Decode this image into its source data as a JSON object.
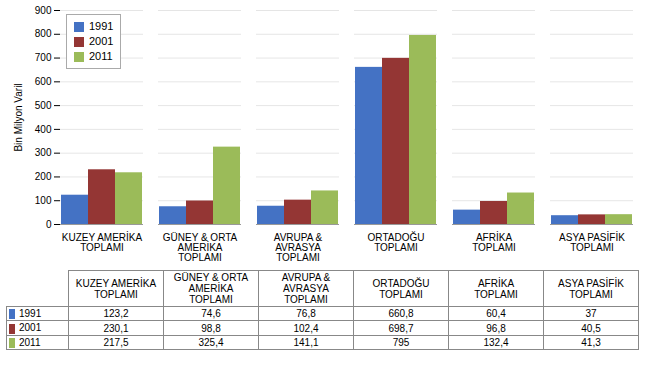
{
  "chart_data": {
    "type": "bar",
    "categories": [
      "KUZEY AMERİKA\nTOPLAMI",
      "GÜNEY & ORTA\nAMERİKA\nTOPLAMI",
      "AVRUPA &\nAVRASYA\nTOPLAMI",
      "ORTADOĞU\nTOPLAMI",
      "AFRİKA\nTOPLAMI",
      "ASYA PASİFİK\nTOPLAMI"
    ],
    "series": [
      {
        "name": "1991",
        "color": "#4472C4",
        "values": [
          123.2,
          74.6,
          76.8,
          660.8,
          60.4,
          37
        ],
        "value_labels": [
          "123,2",
          "74,6",
          "76,8",
          "660,8",
          "60,4",
          "37"
        ]
      },
      {
        "name": "2001",
        "color": "#943634",
        "values": [
          230.1,
          98.8,
          102.4,
          698.7,
          96.8,
          40.5
        ],
        "value_labels": [
          "230,1",
          "98,8",
          "102,4",
          "698,7",
          "96,8",
          "40,5"
        ]
      },
      {
        "name": "2011",
        "color": "#9BBB59",
        "values": [
          217.5,
          325.4,
          141.1,
          795,
          132.4,
          41.3
        ],
        "value_labels": [
          "217,5",
          "325,4",
          "141,1",
          "795",
          "132,4",
          "41,3"
        ]
      }
    ],
    "ylabel": "Bin Milyon Varil",
    "ylim": [
      0,
      900
    ],
    "yticks": [
      0,
      100,
      200,
      300,
      400,
      500,
      600,
      700,
      800,
      900
    ],
    "grid": true,
    "legend": "upper left"
  }
}
